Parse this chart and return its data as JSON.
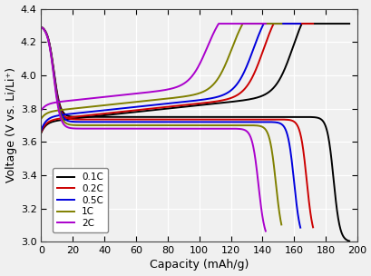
{
  "xlabel": "Capacity (mAh/g)",
  "ylabel": "Voltage (V vs. Li/Li⁺)",
  "xlim": [
    0,
    200
  ],
  "ylim": [
    3.0,
    4.4
  ],
  "xticks": [
    0,
    20,
    40,
    60,
    80,
    100,
    120,
    140,
    160,
    180,
    200
  ],
  "yticks": [
    3.0,
    3.2,
    3.4,
    3.6,
    3.8,
    4.0,
    4.2,
    4.4
  ],
  "legend_labels": [
    "0.1C",
    "0.2C",
    "0.5C",
    "1C",
    "2C"
  ],
  "colors": [
    "#000000",
    "#cc0000",
    "#0000dd",
    "#808000",
    "#aa00cc"
  ],
  "background": "#f0f0f0",
  "grid_color": "#ffffff",
  "linewidth": 1.4,
  "curves": [
    {
      "label": "0.1C",
      "color": "#000000",
      "chg_cap": 195,
      "chg_v_start": 3.655,
      "chg_v_plateau": 3.72,
      "chg_plateau_end": 130,
      "chg_v_end": 4.3,
      "dis_cap": 195,
      "dis_v_start": 4.3,
      "dis_v_plateau": 3.75,
      "dis_drop_start": 175,
      "dis_drop_end": 195
    },
    {
      "label": "0.2C",
      "color": "#cc0000",
      "chg_cap": 172,
      "chg_v_start": 3.66,
      "chg_v_plateau": 3.73,
      "chg_plateau_end": 115,
      "chg_v_end": 4.3,
      "dis_cap": 172,
      "dis_v_start": 4.3,
      "dis_v_plateau": 3.735,
      "dis_drop_start": 163,
      "dis_drop_end": 173
    },
    {
      "label": "0.5C",
      "color": "#0000dd",
      "chg_cap": 164,
      "chg_v_start": 3.67,
      "chg_v_plateau": 3.75,
      "chg_plateau_end": 110,
      "chg_v_end": 4.3,
      "dis_cap": 164,
      "dis_v_start": 4.3,
      "dis_v_plateau": 3.72,
      "dis_drop_start": 155,
      "dis_drop_end": 165
    },
    {
      "label": "1C",
      "color": "#808000",
      "chg_cap": 152,
      "chg_v_start": 3.74,
      "chg_v_plateau": 3.78,
      "chg_plateau_end": 95,
      "chg_v_end": 4.3,
      "dis_cap": 152,
      "dis_v_start": 4.3,
      "dis_v_plateau": 3.7,
      "dis_drop_start": 143,
      "dis_drop_end": 154
    },
    {
      "label": "2C",
      "color": "#aa00cc",
      "chg_cap": 142,
      "chg_v_start": 3.79,
      "chg_v_plateau": 3.83,
      "chg_plateau_end": 75,
      "chg_v_end": 4.3,
      "dis_cap": 142,
      "dis_v_start": 4.3,
      "dis_v_plateau": 3.68,
      "dis_drop_start": 132,
      "dis_drop_end": 143
    }
  ]
}
